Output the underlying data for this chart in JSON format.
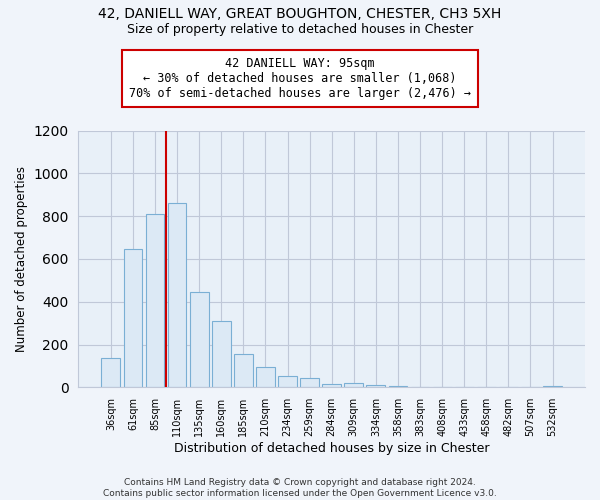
{
  "title1": "42, DANIELL WAY, GREAT BOUGHTON, CHESTER, CH3 5XH",
  "title2": "Size of property relative to detached houses in Chester",
  "xlabel": "Distribution of detached houses by size in Chester",
  "ylabel": "Number of detached properties",
  "bar_labels": [
    "36sqm",
    "61sqm",
    "85sqm",
    "110sqm",
    "135sqm",
    "160sqm",
    "185sqm",
    "210sqm",
    "234sqm",
    "259sqm",
    "284sqm",
    "309sqm",
    "334sqm",
    "358sqm",
    "383sqm",
    "408sqm",
    "433sqm",
    "458sqm",
    "482sqm",
    "507sqm",
    "532sqm"
  ],
  "bar_values": [
    135,
    645,
    810,
    860,
    445,
    310,
    157,
    95,
    52,
    42,
    17,
    20,
    10,
    5,
    2,
    0,
    0,
    0,
    0,
    0,
    8
  ],
  "bar_color": "#dce9f5",
  "bar_edge_color": "#7aafd4",
  "vline_x": 2.5,
  "vline_color": "#cc0000",
  "annotation_title": "42 DANIELL WAY: 95sqm",
  "annotation_line1": "← 30% of detached houses are smaller (1,068)",
  "annotation_line2": "70% of semi-detached houses are larger (2,476) →",
  "annotation_box_color": "#ffffff",
  "annotation_box_edge": "#cc0000",
  "ylim": [
    0,
    1200
  ],
  "yticks": [
    0,
    200,
    400,
    600,
    800,
    1000,
    1200
  ],
  "footnote1": "Contains HM Land Registry data © Crown copyright and database right 2024.",
  "footnote2": "Contains public sector information licensed under the Open Government Licence v3.0.",
  "bg_color": "#f0f4fa",
  "plot_bg_color": "#e8f0f8",
  "grid_color": "#c0c8d8"
}
